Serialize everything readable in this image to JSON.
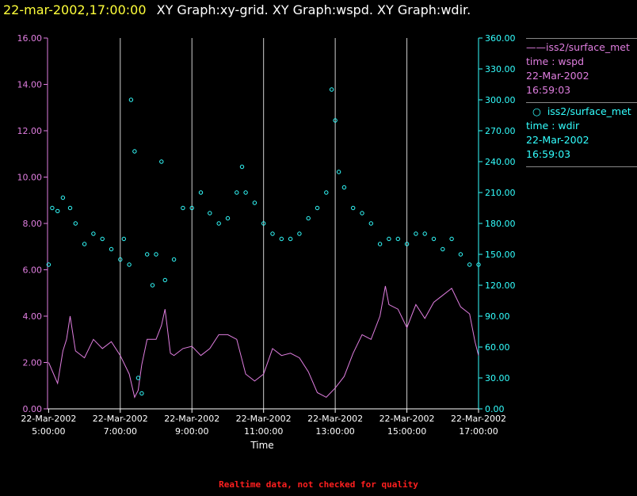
{
  "header": {
    "time": "22-mar-2002,17:00:00",
    "graphs": "XY Graph:xy-grid.  XY Graph:wspd.  XY Graph:wdir."
  },
  "legend": [
    {
      "line1": "iss2/surface_met",
      "line2": "time : wspd",
      "line3": "22-Mar-2002",
      "line4": "16:59:03",
      "color": "#e07ee0",
      "marker": "line"
    },
    {
      "line1": "iss2/surface_met",
      "line2": "time : wdir",
      "line3": "22-Mar-2002",
      "line4": "16:59:03",
      "color": "#33ffff",
      "marker": "circle"
    }
  ],
  "footer": "Realtime data, not checked for quality",
  "chart_data": {
    "type": "line",
    "xlabel": "Time",
    "x_ticks": [
      {
        "date": "22-Mar-2002",
        "time": "5:00:00",
        "hour": 5
      },
      {
        "date": "22-Mar-2002",
        "time": "7:00:00",
        "hour": 7
      },
      {
        "date": "22-Mar-2002",
        "time": "9:00:00",
        "hour": 9
      },
      {
        "date": "22-Mar-2002",
        "time": "11:00:00",
        "hour": 11
      },
      {
        "date": "22-Mar-2002",
        "time": "13:00:00",
        "hour": 13
      },
      {
        "date": "22-Mar-2002",
        "time": "15:00:00",
        "hour": 15
      },
      {
        "date": "22-Mar-2002",
        "time": "17:00:00",
        "hour": 17
      }
    ],
    "xlim": [
      4.97,
      17.0
    ],
    "y_left": {
      "min": 0,
      "max": 16,
      "ticks": [
        "0.00",
        "2.00",
        "4.00",
        "6.00",
        "8.00",
        "10.00",
        "12.00",
        "14.00",
        "16.00"
      ],
      "color": "#e07ee0"
    },
    "y_right": {
      "min": 0,
      "max": 360,
      "ticks": [
        "0.00",
        "30.00",
        "60.00",
        "90.00",
        "120.00",
        "150.00",
        "180.00",
        "210.00",
        "240.00",
        "270.00",
        "300.00",
        "330.00",
        "360.00"
      ],
      "color": "#33ffff"
    },
    "vertical_grid": true,
    "legend_position": "right",
    "series": [
      {
        "name": "iss2/surface_met time : wspd",
        "axis": "left",
        "style": "line",
        "color": "#e07ee0",
        "points": [
          [
            5.0,
            2.0
          ],
          [
            5.25,
            1.1
          ],
          [
            5.4,
            2.5
          ],
          [
            5.5,
            3.0
          ],
          [
            5.6,
            4.0
          ],
          [
            5.75,
            2.5
          ],
          [
            6.0,
            2.2
          ],
          [
            6.25,
            3.0
          ],
          [
            6.5,
            2.6
          ],
          [
            6.75,
            2.9
          ],
          [
            7.0,
            2.3
          ],
          [
            7.25,
            1.5
          ],
          [
            7.4,
            0.5
          ],
          [
            7.5,
            0.8
          ],
          [
            7.6,
            1.9
          ],
          [
            7.75,
            3.0
          ],
          [
            8.0,
            3.0
          ],
          [
            8.15,
            3.6
          ],
          [
            8.25,
            4.3
          ],
          [
            8.4,
            2.4
          ],
          [
            8.5,
            2.3
          ],
          [
            8.75,
            2.6
          ],
          [
            9.0,
            2.7
          ],
          [
            9.25,
            2.3
          ],
          [
            9.5,
            2.6
          ],
          [
            9.75,
            3.2
          ],
          [
            10.0,
            3.2
          ],
          [
            10.25,
            3.0
          ],
          [
            10.5,
            1.5
          ],
          [
            10.75,
            1.2
          ],
          [
            11.0,
            1.5
          ],
          [
            11.25,
            2.6
          ],
          [
            11.5,
            2.3
          ],
          [
            11.75,
            2.4
          ],
          [
            12.0,
            2.2
          ],
          [
            12.25,
            1.6
          ],
          [
            12.5,
            0.7
          ],
          [
            12.75,
            0.5
          ],
          [
            13.0,
            0.9
          ],
          [
            13.25,
            1.4
          ],
          [
            13.5,
            2.4
          ],
          [
            13.75,
            3.2
          ],
          [
            14.0,
            3.0
          ],
          [
            14.25,
            4.0
          ],
          [
            14.4,
            5.3
          ],
          [
            14.5,
            4.5
          ],
          [
            14.75,
            4.3
          ],
          [
            15.0,
            3.5
          ],
          [
            15.25,
            4.5
          ],
          [
            15.5,
            3.9
          ],
          [
            15.75,
            4.6
          ],
          [
            16.0,
            4.9
          ],
          [
            16.25,
            5.2
          ],
          [
            16.5,
            4.4
          ],
          [
            16.75,
            4.1
          ],
          [
            16.9,
            2.9
          ],
          [
            17.0,
            2.3
          ]
        ]
      },
      {
        "name": "iss2/surface_met time : wdir",
        "axis": "right",
        "style": "scatter",
        "color": "#33ffff",
        "points": [
          [
            5.0,
            140
          ],
          [
            5.1,
            195
          ],
          [
            5.25,
            192
          ],
          [
            5.4,
            205
          ],
          [
            5.6,
            195
          ],
          [
            5.75,
            180
          ],
          [
            6.0,
            160
          ],
          [
            6.25,
            170
          ],
          [
            6.5,
            165
          ],
          [
            6.75,
            155
          ],
          [
            7.0,
            145
          ],
          [
            7.1,
            165
          ],
          [
            7.25,
            140
          ],
          [
            7.3,
            300
          ],
          [
            7.4,
            250
          ],
          [
            7.5,
            30
          ],
          [
            7.6,
            15
          ],
          [
            7.75,
            150
          ],
          [
            7.9,
            120
          ],
          [
            8.0,
            150
          ],
          [
            8.15,
            240
          ],
          [
            8.25,
            125
          ],
          [
            8.5,
            145
          ],
          [
            8.75,
            195
          ],
          [
            9.0,
            195
          ],
          [
            9.25,
            210
          ],
          [
            9.5,
            190
          ],
          [
            9.75,
            180
          ],
          [
            10.0,
            185
          ],
          [
            10.25,
            210
          ],
          [
            10.4,
            235
          ],
          [
            10.5,
            210
          ],
          [
            10.75,
            200
          ],
          [
            11.0,
            180
          ],
          [
            11.25,
            170
          ],
          [
            11.5,
            165
          ],
          [
            11.75,
            165
          ],
          [
            12.0,
            170
          ],
          [
            12.25,
            185
          ],
          [
            12.5,
            195
          ],
          [
            12.75,
            210
          ],
          [
            12.9,
            310
          ],
          [
            13.0,
            280
          ],
          [
            13.1,
            230
          ],
          [
            13.25,
            215
          ],
          [
            13.5,
            195
          ],
          [
            13.75,
            190
          ],
          [
            14.0,
            180
          ],
          [
            14.25,
            160
          ],
          [
            14.5,
            165
          ],
          [
            14.75,
            165
          ],
          [
            15.0,
            160
          ],
          [
            15.25,
            170
          ],
          [
            15.5,
            170
          ],
          [
            15.75,
            165
          ],
          [
            16.0,
            155
          ],
          [
            16.25,
            165
          ],
          [
            16.5,
            150
          ],
          [
            16.75,
            140
          ],
          [
            17.0,
            140
          ]
        ]
      }
    ]
  }
}
